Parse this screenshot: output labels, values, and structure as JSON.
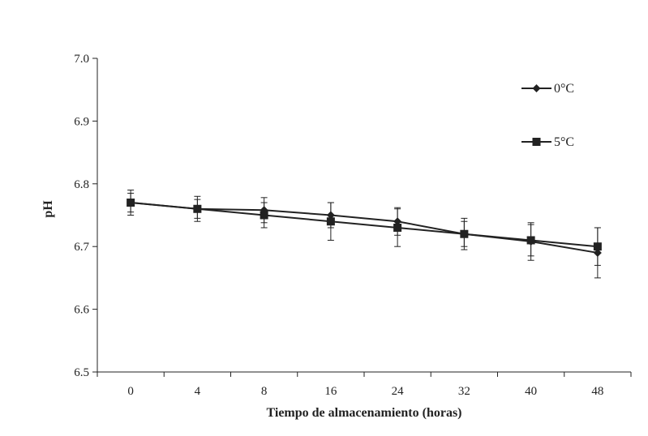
{
  "chart_data": {
    "type": "line",
    "title": "",
    "xlabel": "Tiempo de almacenamiento (horas)",
    "ylabel": "pH",
    "categories": [
      "0",
      "4",
      "8",
      "16",
      "24",
      "32",
      "40",
      "48"
    ],
    "ylim": [
      6.5,
      7.0
    ],
    "yticks": [
      "6.5",
      "6.6",
      "6.7",
      "6.8",
      "6.9",
      "7.0"
    ],
    "grid": false,
    "legend_position": "top-right",
    "series": [
      {
        "name": "0°C",
        "marker": "diamond",
        "color": "#222222",
        "values": [
          6.77,
          6.76,
          6.758,
          6.75,
          6.74,
          6.72,
          6.708,
          6.69
        ],
        "error": [
          0.02,
          0.02,
          0.02,
          0.02,
          0.022,
          0.02,
          0.03,
          0.04
        ]
      },
      {
        "name": "5°C",
        "marker": "square",
        "color": "#222222",
        "values": [
          6.77,
          6.76,
          6.75,
          6.74,
          6.73,
          6.72,
          6.71,
          6.7
        ],
        "error": [
          0.015,
          0.015,
          0.02,
          0.03,
          0.03,
          0.025,
          0.025,
          0.03
        ]
      }
    ]
  }
}
